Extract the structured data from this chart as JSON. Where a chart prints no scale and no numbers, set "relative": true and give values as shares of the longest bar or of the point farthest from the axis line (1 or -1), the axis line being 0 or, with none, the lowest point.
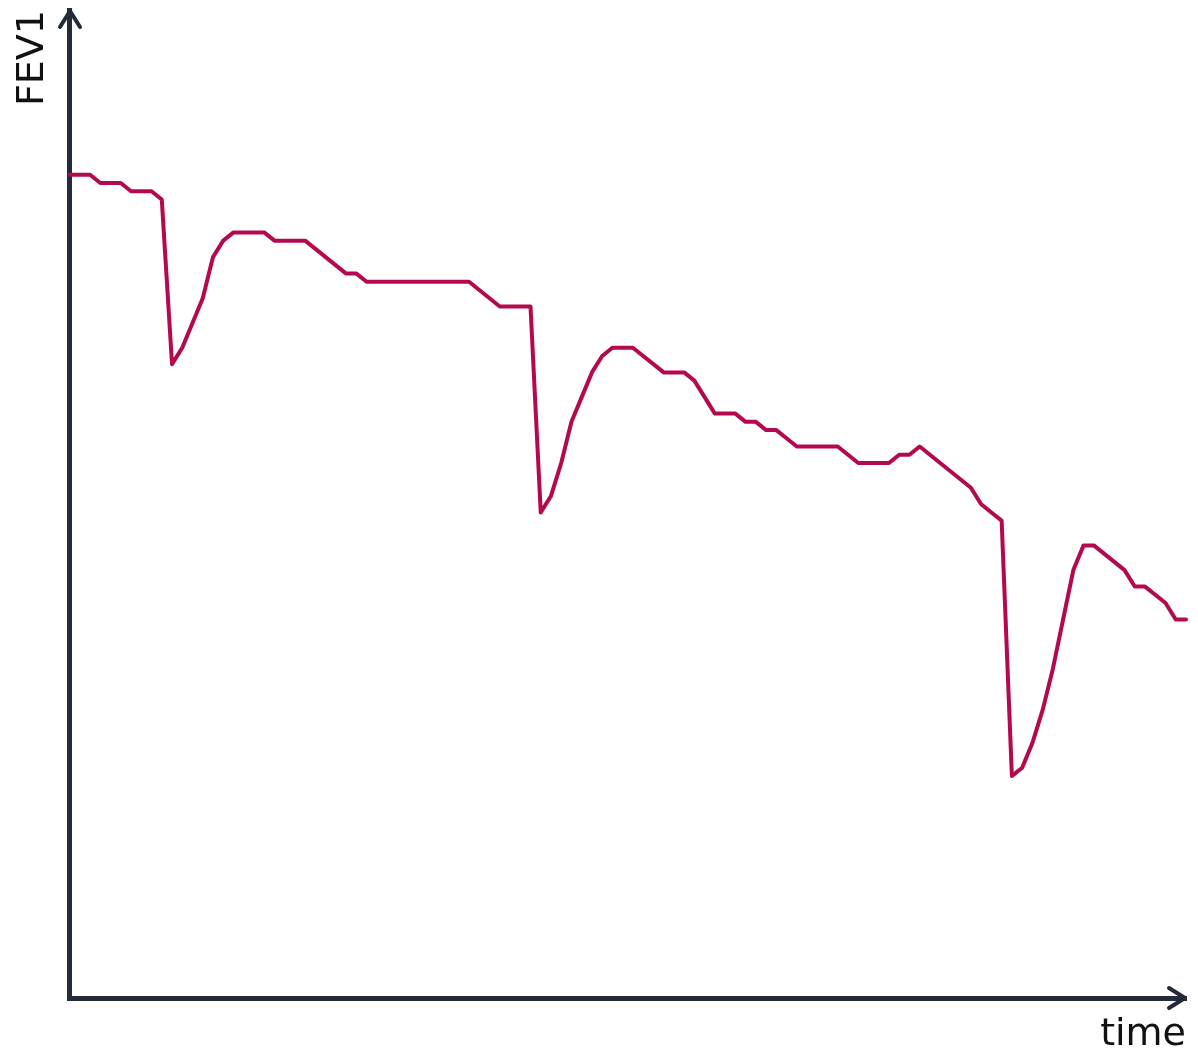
{
  "chart_data": {
    "type": "line",
    "relative": true,
    "xlabel": "time",
    "ylabel": "FEV1",
    "marker": "none",
    "legend": false,
    "categories": [
      null,
      null,
      null,
      null,
      null,
      null,
      null,
      null,
      null,
      null,
      null,
      null,
      null,
      null,
      null,
      null,
      null,
      null,
      null,
      null,
      null,
      null,
      null,
      null,
      null,
      null,
      null,
      null,
      null,
      null,
      null,
      null,
      null,
      null,
      null,
      null,
      null,
      null,
      null,
      null,
      null,
      null,
      null,
      null,
      null,
      null,
      null,
      null,
      null,
      null,
      null,
      null,
      null,
      null,
      null,
      null,
      null,
      null,
      null,
      null,
      null,
      null,
      null,
      null,
      null,
      null,
      null,
      null,
      null,
      null,
      null,
      null,
      null,
      null,
      null,
      null,
      null,
      null,
      null,
      null,
      null,
      null,
      null,
      null,
      null,
      null,
      null,
      null,
      null,
      null,
      null,
      null,
      null,
      null,
      null,
      null,
      null,
      null,
      null,
      null,
      null,
      null,
      null,
      null,
      null,
      null,
      null,
      null,
      null,
      null
    ],
    "series": [
      {
        "color": "#b5094f",
        "values": [
          1.0,
          1.0,
          1.0,
          0.99,
          0.99,
          0.99,
          0.98,
          0.98,
          0.98,
          0.97,
          0.77,
          0.79,
          0.82,
          0.85,
          0.9,
          0.92,
          0.93,
          0.93,
          0.93,
          0.93,
          0.92,
          0.92,
          0.92,
          0.92,
          0.91,
          0.9,
          0.89,
          0.88,
          0.88,
          0.87,
          0.87,
          0.87,
          0.87,
          0.87,
          0.87,
          0.87,
          0.87,
          0.87,
          0.87,
          0.87,
          0.86,
          0.85,
          0.84,
          0.84,
          0.84,
          0.84,
          0.59,
          0.61,
          0.65,
          0.7,
          0.73,
          0.76,
          0.78,
          0.79,
          0.79,
          0.79,
          0.78,
          0.77,
          0.76,
          0.76,
          0.76,
          0.75,
          0.73,
          0.71,
          0.71,
          0.71,
          0.7,
          0.7,
          0.69,
          0.69,
          0.68,
          0.67,
          0.67,
          0.67,
          0.67,
          0.67,
          0.66,
          0.65,
          0.65,
          0.65,
          0.65,
          0.66,
          0.66,
          0.67,
          0.66,
          0.65,
          0.64,
          0.63,
          0.62,
          0.6,
          0.59,
          0.58,
          0.27,
          0.28,
          0.31,
          0.35,
          0.4,
          0.46,
          0.52,
          0.55,
          0.55,
          0.54,
          0.53,
          0.52,
          0.5,
          0.5,
          0.49,
          0.48,
          0.46,
          0.46
        ]
      }
    ]
  }
}
